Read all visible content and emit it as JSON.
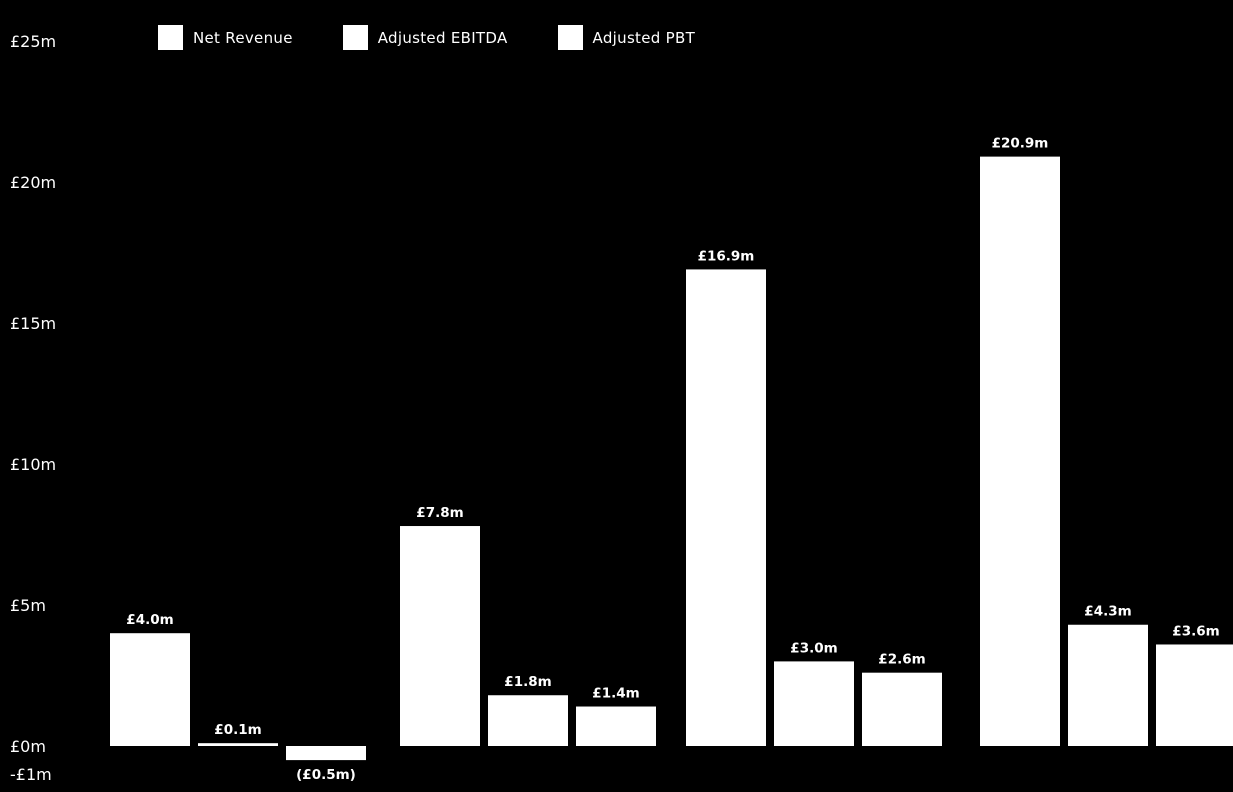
{
  "chart_data": {
    "type": "bar",
    "title": "",
    "xlabel": "",
    "ylabel": "",
    "ylim": [
      -1,
      25
    ],
    "yticks": [
      {
        "value": 25,
        "label": "£25m"
      },
      {
        "value": 20,
        "label": "£20m"
      },
      {
        "value": 15,
        "label": "£15m"
      },
      {
        "value": 10,
        "label": "£10m"
      },
      {
        "value": 5,
        "label": "£5m"
      },
      {
        "value": 0,
        "label": "£0m"
      },
      {
        "value": -1,
        "label": "-£1m"
      }
    ],
    "grid": false,
    "legend_position": "top-left",
    "categories": [
      "",
      "",
      "",
      ""
    ],
    "series": [
      {
        "name": "Net Revenue",
        "values": [
          4.0,
          7.8,
          16.9,
          20.9
        ],
        "labels": [
          "£4.0m",
          "£7.8m",
          "£16.9m",
          "£20.9m"
        ]
      },
      {
        "name": "Adjusted EBITDA",
        "values": [
          0.1,
          1.8,
          3.0,
          4.3
        ],
        "labels": [
          "£0.1m",
          "£1.8m",
          "£3.0m",
          "£4.3m"
        ]
      },
      {
        "name": "Adjusted PBT",
        "values": [
          -0.5,
          1.4,
          2.6,
          3.6
        ],
        "labels": [
          "(£0.5m)",
          "£1.4m",
          "£2.6m",
          "£3.6m"
        ]
      }
    ],
    "colors": {
      "background": "#000000",
      "bars": "#ffffff",
      "text": "#ffffff"
    }
  }
}
